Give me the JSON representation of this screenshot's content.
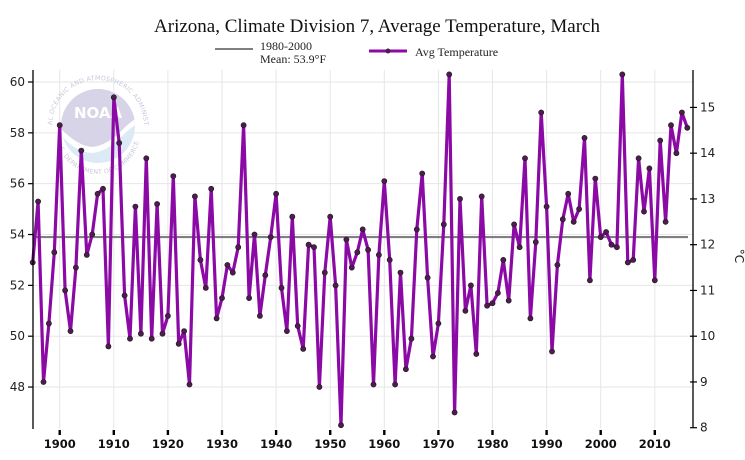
{
  "chart_data": {
    "type": "line",
    "title": "Arizona, Climate Division 7, Average Temperature, March",
    "xlabel": "",
    "ylabel_left": "",
    "ylabel_right": "°C",
    "xlim": [
      1895,
      2016
    ],
    "ylim": [
      46.4,
      60.6
    ],
    "ylim_right": [
      8,
      15.9
    ],
    "grid": true,
    "x_ticks": [
      1900,
      1910,
      1920,
      1930,
      1940,
      1950,
      1960,
      1970,
      1980,
      1990,
      2000,
      2010
    ],
    "x_tick_labels": [
      "1900",
      "1910",
      "1920",
      "1930",
      "1940",
      "1950",
      "1960",
      "1970",
      "1980",
      "1990",
      "2000",
      "2010"
    ],
    "y_ticks": [
      48,
      50,
      52,
      54,
      56,
      58,
      60
    ],
    "y_tick_labels": [
      "48",
      "50",
      "52",
      "54",
      "56",
      "58",
      "60"
    ],
    "y_right_ticks": [
      8,
      9,
      10,
      11,
      12,
      13,
      14,
      15
    ],
    "y_right_tick_labels": [
      "8",
      "9",
      "10",
      "11",
      "12",
      "13",
      "14",
      "15"
    ],
    "legend": {
      "placement": "top-center",
      "entries": [
        {
          "label_line1": "1980-2000",
          "label_line2": "Mean: 53.9°F",
          "style": "gray-line"
        },
        {
          "label": "Avg Temperature",
          "style": "purple-line-marker"
        }
      ]
    },
    "reference_line": {
      "name": "1980-2000 Mean",
      "value": 53.9,
      "color": "#7f7f7f"
    },
    "series": [
      {
        "name": "Avg Temperature",
        "color": "#8b0aa5",
        "marker_color": "#4a1f4a",
        "x": [
          1895,
          1896,
          1897,
          1898,
          1899,
          1900,
          1901,
          1902,
          1903,
          1904,
          1905,
          1906,
          1907,
          1908,
          1909,
          1910,
          1911,
          1912,
          1913,
          1914,
          1915,
          1916,
          1917,
          1918,
          1919,
          1920,
          1921,
          1922,
          1923,
          1924,
          1925,
          1926,
          1927,
          1928,
          1929,
          1930,
          1931,
          1932,
          1933,
          1934,
          1935,
          1936,
          1937,
          1938,
          1939,
          1940,
          1941,
          1942,
          1943,
          1944,
          1945,
          1946,
          1947,
          1948,
          1949,
          1950,
          1951,
          1952,
          1953,
          1954,
          1955,
          1956,
          1957,
          1958,
          1959,
          1960,
          1961,
          1962,
          1963,
          1964,
          1965,
          1966,
          1967,
          1968,
          1969,
          1970,
          1971,
          1972,
          1973,
          1974,
          1975,
          1976,
          1977,
          1978,
          1979,
          1980,
          1981,
          1982,
          1983,
          1984,
          1985,
          1986,
          1987,
          1988,
          1989,
          1990,
          1991,
          1992,
          1993,
          1994,
          1995,
          1996,
          1997,
          1998,
          1999,
          2000,
          2001,
          2002,
          2003,
          2004,
          2005,
          2006,
          2007,
          2008,
          2009,
          2010,
          2011,
          2012,
          2013,
          2014,
          2015,
          2016
        ],
        "values": [
          52.9,
          55.3,
          48.2,
          50.5,
          53.3,
          58.3,
          51.8,
          50.2,
          52.7,
          57.3,
          53.2,
          54.0,
          55.6,
          55.8,
          49.6,
          59.4,
          57.6,
          51.6,
          49.9,
          55.1,
          50.1,
          57.0,
          49.9,
          55.2,
          50.1,
          50.8,
          56.3,
          49.7,
          50.2,
          48.1,
          55.5,
          53.0,
          51.9,
          55.8,
          50.7,
          51.5,
          52.8,
          52.5,
          53.5,
          58.3,
          51.5,
          54.0,
          50.8,
          52.4,
          53.9,
          55.6,
          51.9,
          50.2,
          54.7,
          50.4,
          49.5,
          53.6,
          53.5,
          48.0,
          52.5,
          54.7,
          52.0,
          46.5,
          53.8,
          52.7,
          53.3,
          54.2,
          53.4,
          48.1,
          53.2,
          56.1,
          53.0,
          48.1,
          52.5,
          48.7,
          49.9,
          54.2,
          56.4,
          52.3,
          49.2,
          50.5,
          54.4,
          60.3,
          47.0,
          55.4,
          51.0,
          52.0,
          49.3,
          55.5,
          51.2,
          51.3,
          51.7,
          53.0,
          51.4,
          54.4,
          53.5,
          57.0,
          50.7,
          53.7,
          58.8,
          55.1,
          49.4,
          52.8,
          54.6,
          55.6,
          54.5,
          55.0,
          57.8,
          52.2,
          56.2,
          53.9,
          54.1,
          53.6,
          53.5,
          60.3,
          52.9,
          53.0,
          57.0,
          54.9,
          56.6,
          52.2,
          57.7,
          54.5,
          58.3,
          57.2,
          58.8,
          58.2
        ]
      }
    ]
  },
  "watermark": {
    "logo_text": "NOAA",
    "ring_text_top": "NATIONAL OCEANIC AND ATMOSPHERIC ADMINISTRATION",
    "ring_text_bottom": "U.S. DEPARTMENT OF COMMERCE"
  }
}
